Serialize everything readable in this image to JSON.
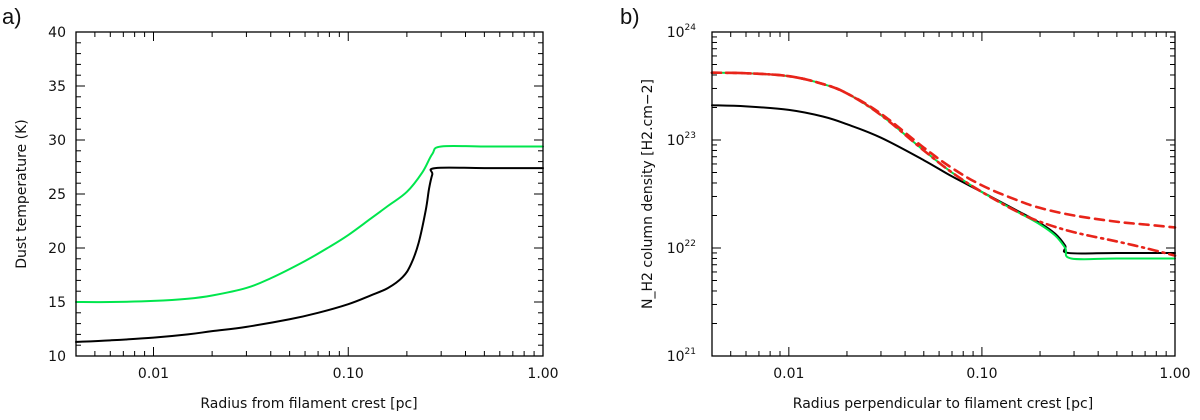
{
  "chart_data": [
    {
      "panel_label": "a)",
      "type": "line",
      "xscale": "log",
      "yscale": "linear",
      "xlim": [
        0.004,
        1.0
      ],
      "ylim": [
        10,
        40
      ],
      "xlabel": "Radius from filament crest [pc]",
      "ylabel": "Dust temperature (K)",
      "xticks": [
        {
          "value": 0.01,
          "label": "0.01"
        },
        {
          "value": 0.1,
          "label": "0.10"
        },
        {
          "value": 1.0,
          "label": "1.00"
        }
      ],
      "yticks": [
        {
          "value": 10,
          "label": "10"
        },
        {
          "value": 15,
          "label": "15"
        },
        {
          "value": 20,
          "label": "20"
        },
        {
          "value": 25,
          "label": "25"
        },
        {
          "value": 30,
          "label": "30"
        },
        {
          "value": 35,
          "label": "35"
        },
        {
          "value": 40,
          "label": "40"
        }
      ],
      "series": [
        {
          "name": "green",
          "color": "#00e64d",
          "dash": "solid",
          "x": [
            0.004,
            0.006,
            0.01,
            0.015,
            0.02,
            0.03,
            0.04,
            0.06,
            0.08,
            0.1,
            0.13,
            0.16,
            0.2,
            0.24,
            0.27,
            0.3,
            0.5,
            1.0
          ],
          "y": [
            15.0,
            15.0,
            15.1,
            15.3,
            15.6,
            16.3,
            17.2,
            18.8,
            20.1,
            21.2,
            22.7,
            23.9,
            25.2,
            27.0,
            28.7,
            29.4,
            29.4,
            29.4
          ]
        },
        {
          "name": "black",
          "color": "#000000",
          "dash": "solid",
          "x": [
            0.004,
            0.006,
            0.01,
            0.015,
            0.02,
            0.03,
            0.05,
            0.07,
            0.1,
            0.13,
            0.16,
            0.19,
            0.21,
            0.23,
            0.25,
            0.26,
            0.27,
            0.28,
            0.5,
            1.0
          ],
          "y": [
            11.3,
            11.45,
            11.7,
            12.0,
            12.3,
            12.7,
            13.4,
            14.0,
            14.8,
            15.6,
            16.3,
            17.3,
            18.5,
            20.5,
            23.5,
            25.5,
            26.8,
            27.4,
            27.4,
            27.4
          ]
        }
      ]
    },
    {
      "panel_label": "b)",
      "type": "line",
      "xscale": "log",
      "yscale": "log",
      "xlim": [
        0.004,
        1.0
      ],
      "ylim": [
        1e+21,
        1e+24
      ],
      "xlabel": "Radius perpendicular to filament crest [pc]",
      "ylabel": "N_H2 column density [H2.cm−2]",
      "xticks": [
        {
          "value": 0.01,
          "label": "0.01"
        },
        {
          "value": 0.1,
          "label": "0.10"
        },
        {
          "value": 1.0,
          "label": "1.00"
        }
      ],
      "yticks": [
        {
          "value": 1e+21,
          "base": "10",
          "exp": "21"
        },
        {
          "value": 1e+22,
          "base": "10",
          "exp": "22"
        },
        {
          "value": 1e+23,
          "base": "10",
          "exp": "23"
        },
        {
          "value": 1e+24,
          "base": "10",
          "exp": "24"
        }
      ],
      "series": [
        {
          "name": "black",
          "color": "#000000",
          "dash": "solid",
          "x": [
            0.004,
            0.006,
            0.01,
            0.015,
            0.02,
            0.03,
            0.05,
            0.07,
            0.1,
            0.15,
            0.2,
            0.24,
            0.27,
            0.28,
            0.5,
            1.0
          ],
          "y": [
            2.1e+23,
            2.05e+23,
            1.9e+23,
            1.65e+23,
            1.4e+23,
            1.05e+23,
            6.5e+22,
            4.6e+22,
            3.3e+22,
            2.25e+22,
            1.7e+22,
            1.35e+22,
            1.05e+22,
            9e+21,
            9e+21,
            9e+21
          ]
        },
        {
          "name": "green",
          "color": "#00e64d",
          "dash": "solid",
          "x": [
            0.004,
            0.006,
            0.01,
            0.015,
            0.02,
            0.03,
            0.05,
            0.07,
            0.1,
            0.15,
            0.2,
            0.24,
            0.27,
            0.29,
            0.5,
            1.0
          ],
          "y": [
            4.2e+23,
            4.15e+23,
            3.9e+23,
            3.3e+23,
            2.7e+23,
            1.7e+23,
            8e+22,
            5e+22,
            3.3e+22,
            2.2e+22,
            1.65e+22,
            1.3e+22,
            1e+22,
            8e+21,
            8e+21,
            8e+21
          ]
        },
        {
          "name": "red dash-dot",
          "color": "#e8241a",
          "dash": "dashdot",
          "x": [
            0.004,
            0.006,
            0.01,
            0.015,
            0.02,
            0.03,
            0.05,
            0.07,
            0.1,
            0.15,
            0.2,
            0.3,
            0.5,
            0.7,
            1.0
          ],
          "y": [
            4.2e+23,
            4.15e+23,
            3.9e+23,
            3.3e+23,
            2.7e+23,
            1.7e+23,
            8e+22,
            5e+22,
            3.3e+22,
            2.2e+22,
            1.75e+22,
            1.4e+22,
            1.15e+22,
            1e+22,
            8.5e+21
          ]
        },
        {
          "name": "red dashed",
          "color": "#e8241a",
          "dash": "dashed",
          "x": [
            0.004,
            0.006,
            0.01,
            0.015,
            0.02,
            0.03,
            0.05,
            0.07,
            0.1,
            0.15,
            0.2,
            0.3,
            0.5,
            0.7,
            1.0
          ],
          "y": [
            4.2e+23,
            4.15e+23,
            3.9e+23,
            3.3e+23,
            2.7e+23,
            1.75e+23,
            8.5e+22,
            5.5e+22,
            3.8e+22,
            2.8e+22,
            2.35e+22,
            2e+22,
            1.75e+22,
            1.65e+22,
            1.55e+22
          ]
        }
      ]
    }
  ]
}
